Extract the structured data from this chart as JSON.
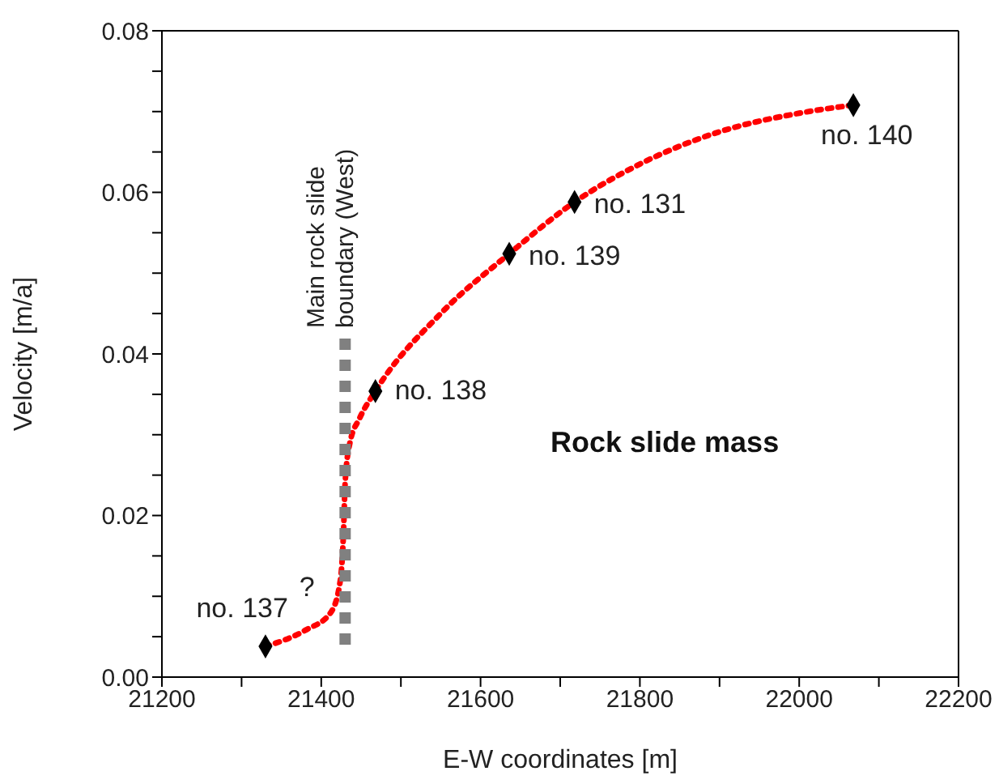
{
  "chart_data": {
    "type": "scatter",
    "xlabel": "E-W coordinates [m]",
    "ylabel": "Velocity [m/a]",
    "grid": false,
    "xlim": [
      21200,
      22200
    ],
    "xticks": [
      21200,
      {
        "value": 21300,
        "label": null
      },
      21400,
      {
        "value": 21500,
        "label": null
      },
      21600,
      {
        "value": 21700,
        "label": null
      },
      21800,
      {
        "value": 21900,
        "label": null
      },
      22000,
      {
        "value": 22100,
        "label": null
      },
      22200
    ],
    "ylim": [
      0,
      0.08
    ],
    "yticks": [
      {
        "value": 0,
        "label": "0.00"
      },
      {
        "value": 0.005,
        "label": null
      },
      {
        "value": 0.01,
        "label": null
      },
      {
        "value": 0.015,
        "label": null
      },
      {
        "value": 0.02,
        "label": "0.02"
      },
      {
        "value": 0.025,
        "label": null
      },
      {
        "value": 0.03,
        "label": null
      },
      {
        "value": 0.035,
        "label": null
      },
      {
        "value": 0.04,
        "label": "0.04"
      },
      {
        "value": 0.045,
        "label": null
      },
      {
        "value": 0.05,
        "label": null
      },
      {
        "value": 0.055,
        "label": null
      },
      {
        "value": 0.06,
        "label": "0.06"
      },
      {
        "value": 0.065,
        "label": null
      },
      {
        "value": 0.07,
        "label": null
      },
      {
        "value": 0.075,
        "label": null
      },
      {
        "value": 0.08,
        "label": "0.08"
      }
    ],
    "series": [
      {
        "type": "line",
        "x": [
          21330,
          21380,
          21412,
          21424,
          21428,
          21430,
          21436,
          21448,
          21468,
          21550,
          21636,
          21718,
          21800,
          21900,
          22000,
          22068
        ],
        "values": [
          0.0038,
          0.0058,
          0.008,
          0.012,
          0.018,
          0.024,
          0.029,
          0.032,
          0.0354,
          0.045,
          0.0524,
          0.0588,
          0.0635,
          0.0675,
          0.0698,
          0.0708
        ],
        "color": "#ff0000",
        "line_style": "dotted",
        "marker": "none"
      },
      {
        "type": "line",
        "name": "Main rock slide boundary (West)",
        "x": [
          21430,
          21430
        ],
        "values": [
          0.004,
          0.042
        ],
        "color": "#808080",
        "line_style": "dashed",
        "marker": "none"
      },
      {
        "x": [
          21330,
          21468,
          21636,
          21718,
          22068
        ],
        "values": [
          0.0038,
          0.0354,
          0.0524,
          0.0588,
          0.0708
        ],
        "color": "#000000",
        "marker": "diamond"
      }
    ],
    "annotations": [
      {
        "text": "no. 137",
        "x": 21330,
        "y": 0.0038
      },
      {
        "text": "no. 138",
        "x": 21468,
        "y": 0.0354
      },
      {
        "text": "no. 139",
        "x": 21636,
        "y": 0.0524
      },
      {
        "text": "no. 131",
        "x": 21718,
        "y": 0.0588
      },
      {
        "text": "no. 140",
        "x": 22068,
        "y": 0.0708
      },
      {
        "text": "?",
        "x": 21412,
        "y": 0.008
      },
      "Rock slide mass"
    ]
  }
}
